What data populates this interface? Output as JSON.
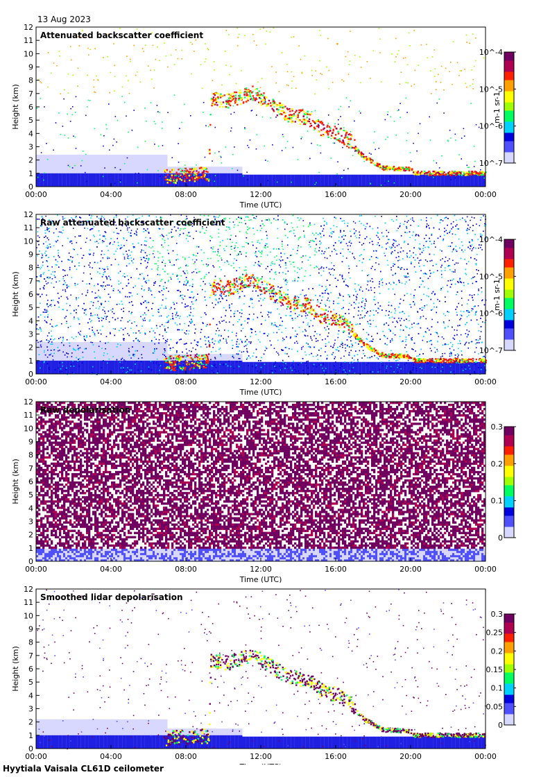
{
  "date_label": "13 Aug 2023",
  "footer": "Hyytiala Vaisala CL61D ceilometer",
  "colors": {
    "scale": [
      "#d8d8ff",
      "#5050ff",
      "#0000dd",
      "#00d0ff",
      "#00ff60",
      "#a0ff00",
      "#ffff00",
      "#ffa000",
      "#ff2000",
      "#b00050",
      "#700060"
    ]
  },
  "chart_data": [
    {
      "type": "heatmap",
      "title": "Attenuated backscatter coefficient",
      "xlabel": "Time (UTC)",
      "ylabel": "Height (km)",
      "x_ticks": [
        "00:00",
        "04:00",
        "08:00",
        "12:00",
        "16:00",
        "20:00",
        "00:00"
      ],
      "y_ticks": [
        "0",
        "1",
        "2",
        "3",
        "4",
        "5",
        "6",
        "7",
        "8",
        "9",
        "10",
        "11",
        "12"
      ],
      "ylim": [
        0,
        12
      ],
      "colorbar": {
        "scale": "log",
        "ticks": [
          "10^-7",
          "10^-6",
          "10^-5",
          "10^-4"
        ],
        "label": "m-1 sr-1"
      },
      "cloud_layers": [
        {
          "t_start": 9.2,
          "t_end": 10.3,
          "height_km": 6.4
        },
        {
          "t_start": 11.5,
          "t_end": 14.5,
          "height_km": 5.5
        },
        {
          "t_start": 14.5,
          "t_end": 16.0,
          "height_km": 4.0
        },
        {
          "t_start": 16.0,
          "t_end": 18.0,
          "height_km": 3.0
        },
        {
          "t_start": 18.0,
          "t_end": 24.0,
          "height_km": 1.1
        }
      ]
    },
    {
      "type": "heatmap",
      "title": "Raw attenuated backscatter coefficient",
      "xlabel": "Time (UTC)",
      "ylabel": "Height (km)",
      "x_ticks": [
        "00:00",
        "04:00",
        "08:00",
        "12:00",
        "16:00",
        "20:00",
        "00:00"
      ],
      "y_ticks": [
        "0",
        "1",
        "2",
        "3",
        "4",
        "5",
        "6",
        "7",
        "8",
        "9",
        "10",
        "11",
        "12"
      ],
      "ylim": [
        0,
        12
      ],
      "colorbar": {
        "scale": "log",
        "ticks": [
          "10^-7",
          "10^-6",
          "10^-5",
          "10^-4"
        ],
        "label": "m-1 sr-1"
      }
    },
    {
      "type": "heatmap",
      "title": "Raw depolarisation",
      "xlabel": "Time (UTC)",
      "ylabel": "Height (km)",
      "x_ticks": [
        "00:00",
        "04:00",
        "08:00",
        "12:00",
        "16:00",
        "20:00",
        "00:00"
      ],
      "y_ticks": [
        "0",
        "1",
        "2",
        "3",
        "4",
        "5",
        "6",
        "7",
        "8",
        "9",
        "10",
        "11",
        "12"
      ],
      "ylim": [
        0,
        12
      ],
      "colorbar": {
        "scale": "linear",
        "ticks": [
          "0",
          "0.1",
          "0.2",
          "0.3"
        ],
        "range": [
          0,
          0.3
        ]
      }
    },
    {
      "type": "heatmap",
      "title": "Smoothed lidar depolarisation",
      "xlabel": "Time (UTC)",
      "ylabel": "Height (km)",
      "x_ticks": [
        "00:00",
        "04:00",
        "08:00",
        "12:00",
        "16:00",
        "20:00",
        "00:00"
      ],
      "y_ticks": [
        "0",
        "1",
        "2",
        "3",
        "4",
        "5",
        "6",
        "7",
        "8",
        "9",
        "10",
        "11",
        "12"
      ],
      "ylim": [
        0,
        12
      ],
      "colorbar": {
        "scale": "linear",
        "ticks": [
          "0",
          "0.05",
          "0.1",
          "0.15",
          "0.2",
          "0.25",
          "0.3"
        ],
        "range": [
          0,
          0.3
        ]
      }
    }
  ]
}
